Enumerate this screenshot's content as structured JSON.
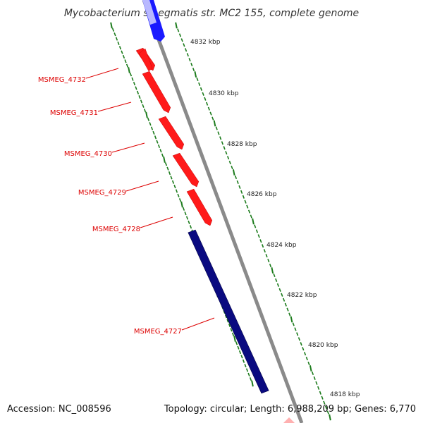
{
  "title": "Mycobacterium smegmatis str. MC2 155, complete genome",
  "footer": {
    "accession": "Accession: NC_008596",
    "summary": "Topology: circular; Length: 6,988,209 bp; Genes: 6,770"
  },
  "colors": {
    "backbone": "#888888",
    "forward_gene": "#ff1a1a",
    "reverse_gene": "#0a0a80",
    "reverse_gene_bright": "#1a1aff",
    "tick": "#1a7a1a",
    "label": "#dd0000"
  },
  "kbp_labels": [
    "4832 kbp",
    "4830 kbp",
    "4828 kbp",
    "4826 kbp",
    "4824 kbp",
    "4822 kbp",
    "4820 kbp",
    "4818 kbp"
  ],
  "genes": [
    {
      "label": "MSMEG_4732",
      "strand": "forward"
    },
    {
      "label": "MSMEG_4731",
      "strand": "forward"
    },
    {
      "label": "MSMEG_4730",
      "strand": "forward"
    },
    {
      "label": "MSMEG_4729",
      "strand": "forward"
    },
    {
      "label": "MSMEG_4728",
      "strand": "forward"
    },
    {
      "label": "MSMEG_4727",
      "strand": "reverse"
    }
  ]
}
